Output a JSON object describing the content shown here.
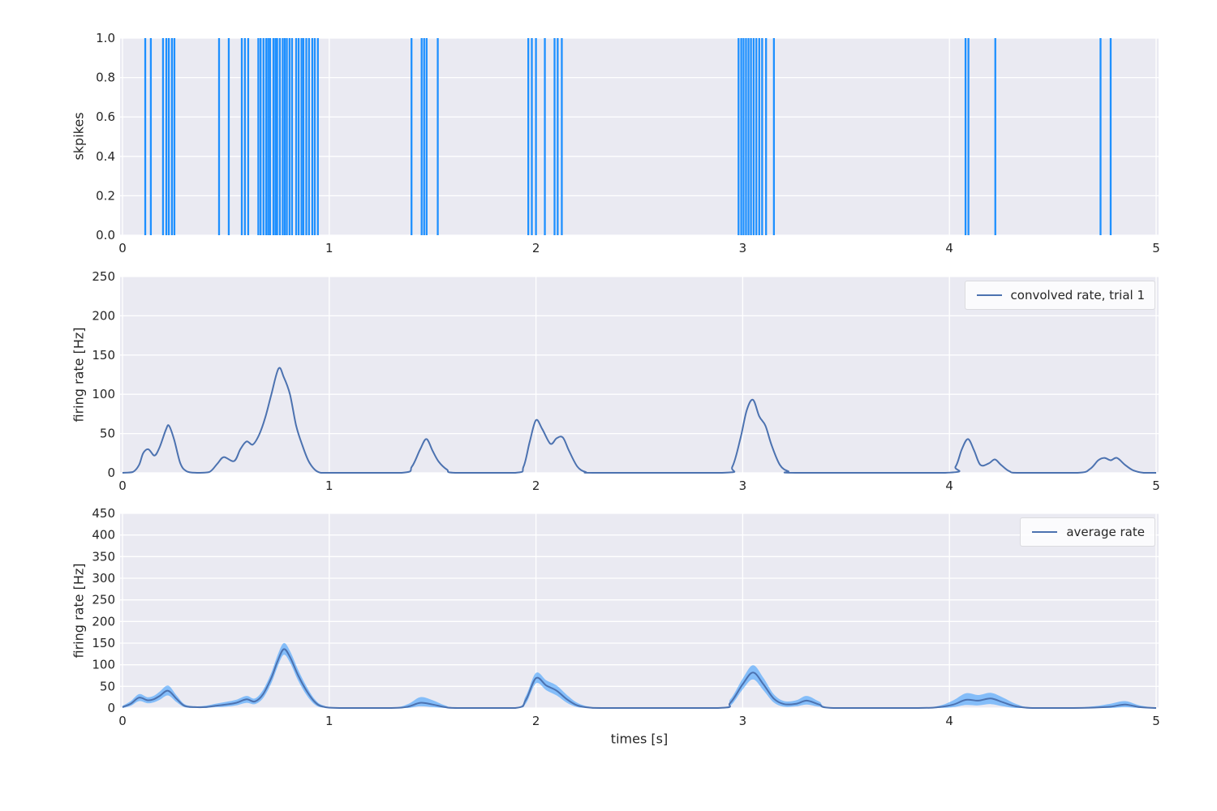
{
  "figure": {
    "background": "#ffffff",
    "panel_background": "#EAEAF2",
    "grid_color": "#ffffff",
    "text_color": "#262626",
    "spike_color": "#1E90FF",
    "line_color": "#4C72B0",
    "band_color": "#1E90FF"
  },
  "chart_data": [
    {
      "type": "eventplot",
      "title": "",
      "ylabel": "skpikes",
      "xlabel": "",
      "xlim": [
        0,
        5
      ],
      "ylim": [
        0,
        1
      ],
      "grid": true,
      "xticks": [
        0,
        1,
        2,
        3,
        4,
        5
      ],
      "xtick_labels": [
        "0",
        "1",
        "2",
        "3",
        "4",
        "5"
      ],
      "yticks": [
        0,
        0.2,
        0.4,
        0.6,
        0.8,
        1.0
      ],
      "ytick_labels": [
        "0.0",
        "0.2",
        "0.4",
        "0.6",
        "0.8",
        "1.0"
      ],
      "spike_color": "#1E90FF",
      "spike_times": [
        0.11,
        0.137,
        0.196,
        0.212,
        0.224,
        0.239,
        0.251,
        0.467,
        0.514,
        0.577,
        0.592,
        0.608,
        0.657,
        0.668,
        0.682,
        0.695,
        0.705,
        0.714,
        0.73,
        0.74,
        0.748,
        0.761,
        0.775,
        0.785,
        0.795,
        0.808,
        0.82,
        0.84,
        0.852,
        0.866,
        0.875,
        0.889,
        0.902,
        0.918,
        0.93,
        0.945,
        1.398,
        1.447,
        1.459,
        1.471,
        1.525,
        1.963,
        1.98,
        2.0,
        2.043,
        2.09,
        2.105,
        2.125,
        2.98,
        2.993,
        3.004,
        3.016,
        3.028,
        3.04,
        3.053,
        3.066,
        3.08,
        3.094,
        3.113,
        3.151,
        4.078,
        4.092,
        4.222,
        4.731,
        4.78
      ]
    },
    {
      "type": "line",
      "title": "",
      "ylabel": "firing rate [Hz]",
      "xlabel": "",
      "legend_label": "convolved rate, trial 1",
      "legend_position": "upper right",
      "xlim": [
        0,
        5
      ],
      "ylim": [
        0,
        250
      ],
      "grid": true,
      "xticks": [
        0,
        1,
        2,
        3,
        4,
        5
      ],
      "xtick_labels": [
        "0",
        "1",
        "2",
        "3",
        "4",
        "5"
      ],
      "yticks": [
        0,
        50,
        100,
        150,
        200,
        250
      ],
      "ytick_labels": [
        "0",
        "50",
        "100",
        "150",
        "200",
        "250"
      ],
      "line_color": "#4C72B0",
      "x": [
        0,
        0.05,
        0.08,
        0.1,
        0.125,
        0.155,
        0.18,
        0.21,
        0.225,
        0.25,
        0.28,
        0.31,
        0.36,
        0.42,
        0.46,
        0.49,
        0.54,
        0.57,
        0.6,
        0.63,
        0.66,
        0.69,
        0.72,
        0.755,
        0.78,
        0.81,
        0.84,
        0.87,
        0.9,
        0.93,
        0.96,
        1.0,
        1.35,
        1.4,
        1.44,
        1.47,
        1.5,
        1.53,
        1.57,
        1.61,
        1.9,
        1.94,
        1.97,
        2.0,
        2.03,
        2.07,
        2.1,
        2.13,
        2.16,
        2.2,
        2.24,
        2.3,
        2.9,
        2.95,
        2.99,
        3.02,
        3.05,
        3.08,
        3.11,
        3.14,
        3.18,
        3.22,
        3.27,
        3.98,
        4.03,
        4.06,
        4.09,
        4.12,
        4.15,
        4.19,
        4.22,
        4.25,
        4.29,
        4.34,
        4.62,
        4.68,
        4.72,
        4.75,
        4.78,
        4.81,
        4.85,
        4.89,
        4.94,
        5.0
      ],
      "y": [
        0,
        1,
        10,
        25,
        30,
        22,
        33,
        55,
        60,
        42,
        12,
        2,
        0,
        1,
        12,
        20,
        15,
        30,
        40,
        36,
        48,
        70,
        100,
        133,
        122,
        100,
        60,
        35,
        15,
        4,
        0,
        0,
        0,
        8,
        30,
        43,
        28,
        14,
        4,
        0,
        0,
        8,
        40,
        67,
        56,
        37,
        44,
        45,
        28,
        8,
        1,
        0,
        0,
        8,
        45,
        80,
        93,
        72,
        60,
        35,
        10,
        2,
        0,
        0,
        8,
        30,
        43,
        28,
        10,
        12,
        17,
        10,
        2,
        0,
        0,
        5,
        16,
        19,
        16,
        19,
        10,
        3,
        0,
        0
      ]
    },
    {
      "type": "line-band",
      "title": "",
      "ylabel": "firing rate [Hz]",
      "xlabel": "times [s]",
      "legend_label": "average rate",
      "legend_position": "upper right",
      "xlim": [
        0,
        5
      ],
      "ylim": [
        0,
        450
      ],
      "grid": true,
      "xticks": [
        0,
        1,
        2,
        3,
        4,
        5
      ],
      "xtick_labels": [
        "0",
        "1",
        "2",
        "3",
        "4",
        "5"
      ],
      "yticks": [
        0,
        50,
        100,
        150,
        200,
        250,
        300,
        350,
        400,
        450
      ],
      "ytick_labels": [
        "0",
        "50",
        "100",
        "150",
        "200",
        "250",
        "300",
        "350",
        "400",
        "450"
      ],
      "line_color": "#4C72B0",
      "band_color": "#1E90FF",
      "band_opacity": 0.5,
      "x": [
        0,
        0.04,
        0.08,
        0.12,
        0.15,
        0.18,
        0.22,
        0.26,
        0.3,
        0.35,
        0.4,
        0.45,
        0.5,
        0.55,
        0.6,
        0.64,
        0.68,
        0.72,
        0.75,
        0.78,
        0.81,
        0.85,
        0.89,
        0.93,
        0.97,
        1.05,
        1.3,
        1.38,
        1.44,
        1.5,
        1.56,
        1.62,
        1.9,
        1.95,
        2.0,
        2.05,
        2.1,
        2.15,
        2.2,
        2.26,
        2.35,
        2.88,
        2.94,
        3.0,
        3.05,
        3.1,
        3.15,
        3.2,
        3.26,
        3.31,
        3.37,
        3.44,
        3.85,
        3.95,
        4.02,
        4.08,
        4.14,
        4.2,
        4.26,
        4.32,
        4.4,
        4.6,
        4.7,
        4.78,
        4.85,
        4.92,
        5.0
      ],
      "mean": [
        2,
        10,
        24,
        18,
        20,
        28,
        40,
        22,
        5,
        2,
        2,
        5,
        8,
        12,
        20,
        15,
        32,
        70,
        108,
        136,
        118,
        75,
        40,
        14,
        3,
        0,
        0,
        3,
        12,
        8,
        2,
        0,
        0,
        18,
        69,
        52,
        40,
        20,
        6,
        1,
        0,
        0,
        12,
        55,
        82,
        55,
        22,
        9,
        10,
        17,
        8,
        0,
        0,
        2,
        8,
        19,
        17,
        22,
        13,
        4,
        0,
        0,
        1,
        3,
        8,
        2,
        0
      ],
      "upper": [
        5,
        16,
        32,
        25,
        28,
        38,
        52,
        30,
        9,
        4,
        5,
        10,
        14,
        19,
        28,
        22,
        42,
        82,
        122,
        150,
        132,
        88,
        50,
        20,
        6,
        1,
        1,
        9,
        25,
        18,
        6,
        1,
        1,
        27,
        81,
        64,
        52,
        30,
        12,
        3,
        1,
        1,
        20,
        68,
        99,
        70,
        32,
        16,
        18,
        28,
        15,
        1,
        1,
        5,
        18,
        34,
        30,
        35,
        24,
        10,
        1,
        1,
        4,
        10,
        16,
        6,
        0
      ],
      "lower": [
        0,
        5,
        16,
        11,
        13,
        19,
        29,
        14,
        2,
        0,
        0,
        2,
        3,
        6,
        12,
        9,
        23,
        58,
        95,
        123,
        105,
        63,
        30,
        8,
        1,
        0,
        0,
        0,
        4,
        2,
        0,
        0,
        0,
        10,
        57,
        41,
        29,
        12,
        2,
        0,
        0,
        0,
        5,
        43,
        66,
        41,
        13,
        3,
        4,
        8,
        3,
        0,
        0,
        0,
        2,
        7,
        6,
        9,
        4,
        0,
        0,
        0,
        0,
        0,
        2,
        0,
        0
      ]
    }
  ]
}
